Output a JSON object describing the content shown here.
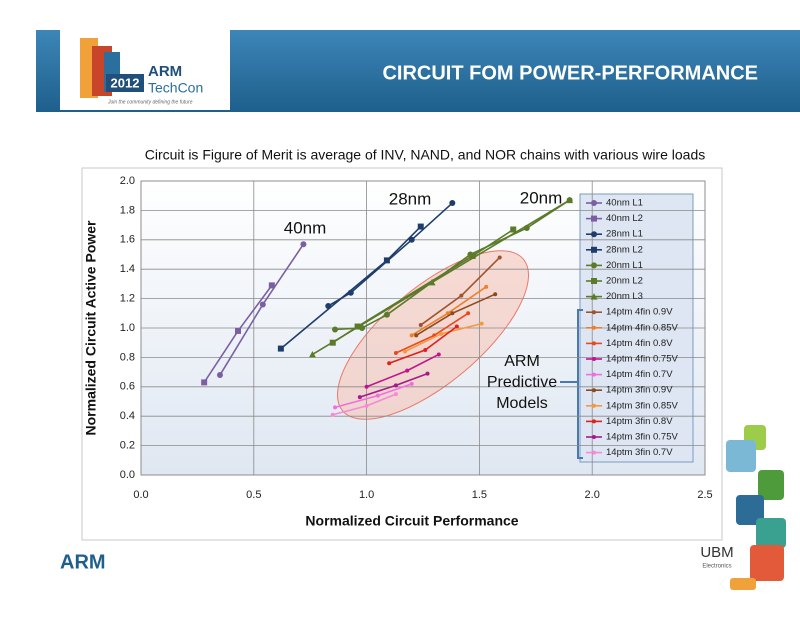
{
  "slide": {
    "title": "CIRCUIT FOM POWER-PERFORMANCE",
    "logo_year": "2012",
    "logo_brand": "ARM",
    "logo_event": "TechCon",
    "logo_tagline": "Join the community defining the future",
    "footer_logo": "ARM",
    "partner_logo": "UBM",
    "partner_sub": "Electronics"
  },
  "chart_data": {
    "type": "line",
    "title": "Circuit is Figure of Merit is average of INV, NAND, and NOR chains with various wire loads",
    "x_label": "Normalized Circuit Performance",
    "y_label": "Normalized Circuit Active Power",
    "xlim": [
      0,
      2.5
    ],
    "ylim": [
      0,
      2.0
    ],
    "xticks": [
      {
        "value": 0,
        "label": "0.0"
      },
      0.5,
      {
        "value": 1,
        "label": "1.0"
      },
      1.5,
      {
        "value": 2,
        "label": "2.0"
      },
      2.5
    ],
    "yticks": [
      {
        "value": 0,
        "label": "0.0"
      },
      0.2,
      0.4,
      0.6,
      0.8,
      {
        "value": 1,
        "label": "1.0"
      },
      1.2,
      1.4,
      1.6,
      1.8,
      {
        "value": 2,
        "label": "2.0"
      }
    ],
    "grid": true,
    "legend": "right",
    "annotations": [
      "40nm",
      "28nm",
      "20nm",
      "ARM",
      "Predictive",
      "Models"
    ],
    "series": [
      {
        "name": "40nm L1",
        "color": "#7b5fa3",
        "marker": "circle",
        "x": [
          0.35,
          0.54,
          0.72
        ],
        "values": [
          0.68,
          1.16,
          1.57
        ]
      },
      {
        "name": "40nm L2",
        "color": "#7b5fa3",
        "marker": "square",
        "x": [
          0.28,
          0.43,
          0.58
        ],
        "values": [
          0.63,
          0.98,
          1.29
        ]
      },
      {
        "name": "28nm L1",
        "color": "#1f3d6b",
        "marker": "circle",
        "x": [
          0.83,
          0.93,
          1.2,
          1.38
        ],
        "values": [
          1.15,
          1.24,
          1.6,
          1.85
        ]
      },
      {
        "name": "28nm L2",
        "color": "#1f3d6b",
        "marker": "square",
        "x": [
          0.62,
          1.09,
          1.24
        ],
        "values": [
          0.86,
          1.46,
          1.69
        ]
      },
      {
        "name": "20nm L1",
        "color": "#5b7a2a",
        "marker": "circle",
        "x": [
          0.86,
          0.98,
          1.09,
          1.46,
          1.71,
          1.9
        ],
        "values": [
          0.99,
          1.0,
          1.09,
          1.5,
          1.68,
          1.87
        ]
      },
      {
        "name": "20nm L2",
        "color": "#5b7a2a",
        "marker": "square",
        "x": [
          0.85,
          0.96,
          1.47,
          1.65
        ],
        "values": [
          0.9,
          1.01,
          1.49,
          1.67
        ]
      },
      {
        "name": "20nm L3",
        "color": "#5b7a2a",
        "marker": "triangle",
        "x": [
          0.76,
          1.29,
          1.9
        ],
        "values": [
          0.82,
          1.31,
          1.87
        ]
      },
      {
        "name": "14ptm 4fin  0.9V",
        "color": "#a0522d",
        "marker": "dot",
        "x": [
          1.24,
          1.42,
          1.59
        ],
        "values": [
          1.02,
          1.22,
          1.48
        ]
      },
      {
        "name": "14ptm 4fin  0.85V",
        "color": "#f07f2a",
        "marker": "dot",
        "x": [
          1.2,
          1.36,
          1.53
        ],
        "values": [
          0.95,
          1.1,
          1.28
        ]
      },
      {
        "name": "14ptm 4fin  0.8V",
        "color": "#e8491d",
        "marker": "dot",
        "x": [
          1.13,
          1.3,
          1.45
        ],
        "values": [
          0.83,
          0.95,
          1.1
        ]
      },
      {
        "name": "14ptm 4fin  0.75V",
        "color": "#c0148c",
        "marker": "dot",
        "x": [
          1.0,
          1.18,
          1.32
        ],
        "values": [
          0.6,
          0.71,
          0.82
        ]
      },
      {
        "name": "14ptm 4fin  0.7V",
        "color": "#f06ee0",
        "marker": "dot",
        "x": [
          0.86,
          1.05,
          1.2
        ],
        "values": [
          0.46,
          0.54,
          0.62
        ]
      },
      {
        "name": "14ptm 3fin  0.9V",
        "color": "#8b4a1e",
        "marker": "dot",
        "x": [
          1.22,
          1.38,
          1.57
        ],
        "values": [
          0.95,
          1.1,
          1.23
        ]
      },
      {
        "name": "14ptm 3fin  0.85V",
        "color": "#f39a3c",
        "marker": "dot",
        "x": [
          1.17,
          1.33,
          1.51
        ],
        "values": [
          0.84,
          0.96,
          1.03
        ]
      },
      {
        "name": "14ptm 3fin  0.8V",
        "color": "#e0201a",
        "marker": "dot",
        "x": [
          1.1,
          1.26,
          1.4
        ],
        "values": [
          0.76,
          0.85,
          1.01
        ]
      },
      {
        "name": "14ptm 3fin  0.75V",
        "color": "#a51a8a",
        "marker": "dot",
        "x": [
          0.97,
          1.13,
          1.27
        ],
        "values": [
          0.53,
          0.61,
          0.69
        ]
      },
      {
        "name": "14ptm 3fin  0.7V",
        "color": "#f58ad8",
        "marker": "dot",
        "x": [
          0.85,
          1.0,
          1.13
        ],
        "values": [
          0.41,
          0.47,
          0.55
        ]
      }
    ]
  }
}
